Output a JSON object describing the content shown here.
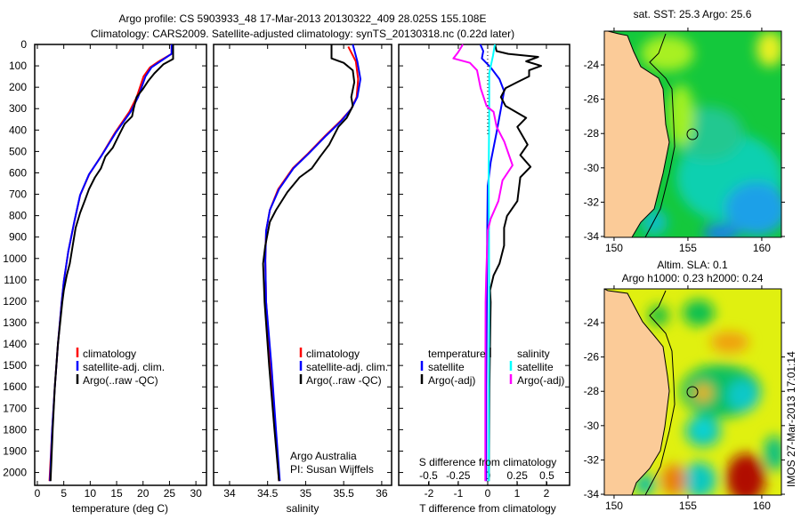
{
  "title": {
    "line1": "Argo profile: CS 5903933_48 17-Mar-2013 20130322_409 28.025S 155.108E",
    "line2": "Climatology: CARS2009. Satellite-adjusted climatology: synTS_20130318.nc (0.22d later)"
  },
  "colors": {
    "climatology": "#ff0000",
    "satellite": "#0000ff",
    "argo": "#000000",
    "s_satellite": "#00ffff",
    "s_argo": "#ff00ff",
    "land": "#fbcb98"
  },
  "depth_axis": {
    "ticks": [
      0,
      100,
      200,
      300,
      400,
      500,
      600,
      700,
      800,
      900,
      1000,
      1100,
      1200,
      1300,
      1400,
      1500,
      1600,
      1700,
      1800,
      1900,
      2000
    ],
    "ylim": [
      0,
      2060
    ]
  },
  "chart_data": [
    {
      "type": "line",
      "name": "temperature-profile",
      "xlabel": "temperature (deg C)",
      "ylabel": "depth",
      "xlim": [
        -0.5,
        32
      ],
      "ylim": [
        0,
        2060
      ],
      "xticks": [
        0,
        5,
        10,
        15,
        20,
        25,
        30
      ],
      "legend": [
        "climatology",
        "satellite-adj. clim.",
        "Argo(..raw -QC)"
      ],
      "series": [
        {
          "name": "climatology",
          "color": "#ff0000",
          "points": [
            [
              25.4,
              0
            ],
            [
              25.4,
              44
            ],
            [
              23.0,
              79
            ],
            [
              21.3,
              107
            ],
            [
              20.1,
              149
            ],
            [
              18.8,
              246
            ],
            [
              17.4,
              315
            ],
            [
              14.7,
              412
            ],
            [
              12.0,
              524
            ],
            [
              9.8,
              607
            ],
            [
              8.1,
              704
            ],
            [
              7.0,
              829
            ],
            [
              5.85,
              968
            ],
            [
              5.0,
              1107
            ],
            [
              4.6,
              1204
            ],
            [
              3.9,
              1400
            ],
            [
              3.3,
              1600
            ],
            [
              2.8,
              1800
            ],
            [
              2.3,
              2040
            ]
          ]
        },
        {
          "name": "satellite-adj. clim.",
          "color": "#0000ff",
          "points": [
            [
              25.4,
              0
            ],
            [
              25.4,
              44
            ],
            [
              23.27,
              79
            ],
            [
              21.6,
              107
            ],
            [
              20.46,
              149
            ],
            [
              19.06,
              246
            ],
            [
              17.65,
              315
            ],
            [
              14.84,
              412
            ],
            [
              12.03,
              524
            ],
            [
              9.78,
              607
            ],
            [
              8.09,
              704
            ],
            [
              6.97,
              829
            ],
            [
              5.85,
              968
            ],
            [
              5.0,
              1107
            ],
            [
              4.61,
              1204
            ],
            [
              3.9,
              1400
            ],
            [
              3.3,
              1600
            ],
            [
              2.8,
              1800
            ],
            [
              2.4,
              2040
            ]
          ]
        },
        {
          "name": "Argo(..raw -QC)",
          "color": "#000000",
          "points": [
            [
              25.69,
              0
            ],
            [
              25.69,
              68
            ],
            [
              23.83,
              93
            ],
            [
              22.15,
              135
            ],
            [
              21.02,
              169
            ],
            [
              19.9,
              211
            ],
            [
              18.77,
              246
            ],
            [
              18.21,
              301
            ],
            [
              17.93,
              336
            ],
            [
              16.53,
              371
            ],
            [
              15.4,
              426
            ],
            [
              14.28,
              482
            ],
            [
              12.87,
              524
            ],
            [
              12.03,
              579
            ],
            [
              10.9,
              621
            ],
            [
              9.78,
              676
            ],
            [
              8.94,
              732
            ],
            [
              8.09,
              787
            ],
            [
              7.25,
              857
            ],
            [
              6.69,
              940
            ],
            [
              6.13,
              1024
            ],
            [
              5.56,
              1079
            ],
            [
              5.0,
              1149
            ],
            [
              4.72,
              1204
            ],
            [
              3.9,
              1400
            ],
            [
              3.3,
              1600
            ],
            [
              2.9,
              1800
            ],
            [
              2.5,
              2040
            ]
          ]
        }
      ]
    },
    {
      "type": "line",
      "name": "salinity-profile",
      "xlabel": "salinity",
      "ylabel": "depth",
      "xlim": [
        33.79,
        36.13
      ],
      "ylim": [
        0,
        2060
      ],
      "xticks": [
        34,
        34.5,
        35,
        35.5,
        36
      ],
      "legend": [
        "climatology",
        "satellite-adj. clim.",
        "Argo(..raw -QC)"
      ],
      "annotation": [
        "Argo Australia",
        "PI: Susan Wijffels"
      ],
      "series": [
        {
          "name": "climatology",
          "color": "#ff0000",
          "points": [
            [
              35.56,
              10
            ],
            [
              35.66,
              79
            ],
            [
              35.69,
              162
            ],
            [
              35.67,
              246
            ],
            [
              35.6,
              301
            ],
            [
              35.46,
              357
            ],
            [
              35.26,
              426
            ],
            [
              35.03,
              510
            ],
            [
              34.83,
              579
            ],
            [
              34.64,
              676
            ],
            [
              34.53,
              774
            ],
            [
              34.48,
              871
            ],
            [
              34.47,
              1010
            ],
            [
              34.48,
              1204
            ],
            [
              34.54,
              1500
            ],
            [
              34.6,
              1800
            ],
            [
              34.65,
              2040
            ]
          ]
        },
        {
          "name": "satellite-adj. clim.",
          "color": "#0000ff",
          "points": [
            [
              35.62,
              0
            ],
            [
              35.68,
              79
            ],
            [
              35.72,
              162
            ],
            [
              35.68,
              246
            ],
            [
              35.6,
              301
            ],
            [
              35.47,
              357
            ],
            [
              35.27,
              426
            ],
            [
              35.04,
              510
            ],
            [
              34.84,
              579
            ],
            [
              34.65,
              676
            ],
            [
              34.53,
              774
            ],
            [
              34.48,
              871
            ],
            [
              34.47,
              1010
            ],
            [
              34.48,
              1204
            ],
            [
              34.55,
              1500
            ],
            [
              34.61,
              1800
            ],
            [
              34.66,
              2040
            ]
          ]
        },
        {
          "name": "Argo(..raw -QC)",
          "color": "#000000",
          "points": [
            [
              35.34,
              0
            ],
            [
              35.34,
              65
            ],
            [
              35.5,
              86
            ],
            [
              35.62,
              121
            ],
            [
              35.64,
              176
            ],
            [
              35.6,
              246
            ],
            [
              35.62,
              288
            ],
            [
              35.54,
              343
            ],
            [
              35.43,
              385
            ],
            [
              35.31,
              468
            ],
            [
              35.19,
              524
            ],
            [
              35.08,
              579
            ],
            [
              34.92,
              621
            ],
            [
              34.76,
              690
            ],
            [
              34.61,
              774
            ],
            [
              34.53,
              829
            ],
            [
              34.47,
              940
            ],
            [
              34.44,
              1024
            ],
            [
              34.45,
              1107
            ],
            [
              34.46,
              1204
            ],
            [
              34.52,
              1500
            ],
            [
              34.59,
              1800
            ],
            [
              34.65,
              2040
            ]
          ]
        }
      ]
    },
    {
      "type": "line",
      "name": "difference-profile",
      "xlabel": "T difference from climatology",
      "x2label": "S difference from climatology",
      "xlim": [
        -3.03,
        2.79
      ],
      "x2lim": [
        -0.752,
        0.692
      ],
      "ylim": [
        0,
        2060
      ],
      "xticks": [
        -2,
        -1,
        0,
        1,
        2
      ],
      "x2ticks": [
        -0.5,
        -0.25,
        0,
        0.25,
        0.5
      ],
      "legend": {
        "temperature_title": "temperature",
        "salinity_title": "salinity",
        "t_satellite": "satellite",
        "t_argo": "Argo(-adj)",
        "s_satellite": "satellite",
        "s_argo": "Argo(-adj)"
      },
      "series": [
        {
          "name": "T satellite",
          "axis": "T",
          "color": "#0000ff",
          "points": [
            [
              -0.25,
              0
            ],
            [
              -0.15,
              31
            ],
            [
              -0.2,
              65
            ],
            [
              0.1,
              107
            ],
            [
              0.4,
              162
            ],
            [
              0.56,
              218
            ],
            [
              0.45,
              301
            ],
            [
              0.3,
              412
            ],
            [
              0.1,
              551
            ],
            [
              0,
              662
            ],
            [
              -0.02,
              940
            ],
            [
              -0.03,
              1204
            ],
            [
              -0.05,
              1600
            ],
            [
              -0.05,
              2040
            ]
          ]
        },
        {
          "name": "T Argo(-adj)",
          "axis": "T",
          "color": "#000000",
          "points": [
            [
              0.25,
              0
            ],
            [
              0.3,
              31
            ],
            [
              0.7,
              44
            ],
            [
              1.72,
              58
            ],
            [
              1.31,
              79
            ],
            [
              1.82,
              100
            ],
            [
              1.41,
              121
            ],
            [
              1.41,
              149
            ],
            [
              1.01,
              176
            ],
            [
              0.61,
              204
            ],
            [
              0.45,
              246
            ],
            [
              0.61,
              288
            ],
            [
              1.31,
              343
            ],
            [
              1.01,
              385
            ],
            [
              1.36,
              468
            ],
            [
              1.11,
              517
            ],
            [
              1.46,
              572
            ],
            [
              1.11,
              621
            ],
            [
              1.01,
              732
            ],
            [
              0.66,
              801
            ],
            [
              0.56,
              857
            ],
            [
              0.56,
              940
            ],
            [
              0.4,
              1024
            ],
            [
              0.2,
              1079
            ],
            [
              0.08,
              1149
            ],
            [
              0.1,
              1204
            ],
            [
              0.06,
              1600
            ],
            [
              0.04,
              2040
            ]
          ]
        },
        {
          "name": "S satellite",
          "axis": "S",
          "color": "#00ffff",
          "points": [
            [
              0.06,
              0
            ],
            [
              0.045,
              51
            ],
            [
              0.0125,
              135
            ],
            [
              0.0125,
              300
            ],
            [
              0.008,
              600
            ],
            [
              0.0125,
              1204
            ],
            [
              0.01,
              1600
            ],
            [
              0.01,
              2040
            ]
          ]
        },
        {
          "name": "S Argo(-adj)",
          "axis": "S",
          "color": "#ff00ff",
          "points": [
            [
              -0.21,
              0
            ],
            [
              -0.25,
              37
            ],
            [
              -0.29,
              65
            ],
            [
              -0.15,
              86
            ],
            [
              -0.09,
              121
            ],
            [
              -0.06,
              204
            ],
            [
              -0.01,
              288
            ],
            [
              0.05,
              315
            ],
            [
              0.075,
              385
            ],
            [
              0.14,
              454
            ],
            [
              0.21,
              565
            ],
            [
              0.125,
              635
            ],
            [
              0.09,
              732
            ],
            [
              0.025,
              815
            ],
            [
              0,
              871
            ],
            [
              -0.0125,
              1079
            ],
            [
              -0.018,
              1204
            ],
            [
              -0.02,
              1600
            ],
            [
              -0.02,
              2040
            ]
          ]
        }
      ]
    },
    {
      "type": "heatmap",
      "name": "sst-map",
      "title": "sat. SST: 25.3 Argo: 25.6",
      "lonlim": [
        149.34,
        161.33
      ],
      "latlim": [
        -34.05,
        -22.03
      ],
      "lon_ticks": [
        150,
        155,
        160
      ],
      "lat_ticks": [
        -24,
        -26,
        -28,
        -30,
        -32,
        -34
      ],
      "argo_position": {
        "lat": -28.025,
        "lon": 155.108
      }
    },
    {
      "type": "heatmap",
      "name": "sla-map",
      "title": "Altim. SLA: 0.1",
      "subtitle": "Argo h1000: 0.23 h2000: 0.24",
      "lonlim": [
        149.34,
        161.33
      ],
      "latlim": [
        -34.05,
        -22.03
      ],
      "lon_ticks": [
        150,
        155,
        160
      ],
      "lat_ticks": [
        -24,
        -26,
        -28,
        -30,
        -32,
        -34
      ],
      "argo_position": {
        "lat": -28.025,
        "lon": 155.108
      }
    }
  ],
  "footer": {
    "stamp": "IMOS 27-Mar-2013 17:01:14"
  }
}
